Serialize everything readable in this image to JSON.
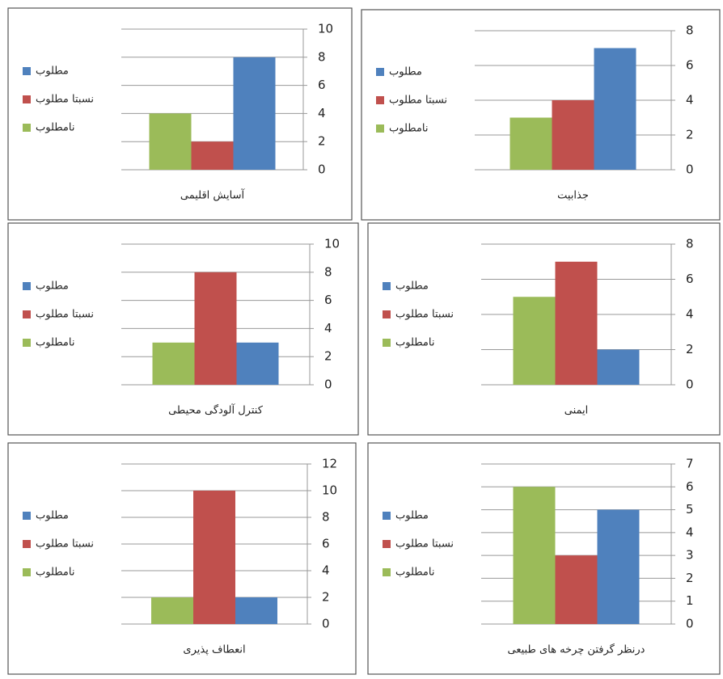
{
  "chart_data": [
    {
      "type": "bar",
      "categories": [
        "آسایش اقلیمی"
      ],
      "series": [
        {
          "name": "مطلوب",
          "color": "#4f81bd",
          "values": [
            8
          ]
        },
        {
          "name": "نسبتا مطلوب",
          "color": "#c0504d",
          "values": [
            2
          ]
        },
        {
          "name": "نامطلوب",
          "color": "#9bbb59",
          "values": [
            4
          ]
        }
      ],
      "ylim": [
        0,
        10
      ],
      "yticks": [
        0,
        2,
        4,
        6,
        8,
        10
      ],
      "grid": true,
      "legend": "left"
    },
    {
      "type": "bar",
      "categories": [
        "جذابیت"
      ],
      "series": [
        {
          "name": "مطلوب",
          "color": "#4f81bd",
          "values": [
            7
          ]
        },
        {
          "name": "نسبتا مطلوب",
          "color": "#c0504d",
          "values": [
            4
          ]
        },
        {
          "name": "نامطلوب",
          "color": "#9bbb59",
          "values": [
            3
          ]
        }
      ],
      "ylim": [
        0,
        8
      ],
      "yticks": [
        0,
        2,
        4,
        6,
        8
      ],
      "grid": true,
      "legend": "left"
    },
    {
      "type": "bar",
      "categories": [
        "کنترل آلودگی محیطی"
      ],
      "series": [
        {
          "name": "مطلوب",
          "color": "#4f81bd",
          "values": [
            3
          ]
        },
        {
          "name": "نسبتا مطلوب",
          "color": "#c0504d",
          "values": [
            8
          ]
        },
        {
          "name": "نامطلوب",
          "color": "#9bbb59",
          "values": [
            3
          ]
        }
      ],
      "ylim": [
        0,
        10
      ],
      "yticks": [
        0,
        2,
        4,
        6,
        8,
        10
      ],
      "grid": true,
      "legend": "left"
    },
    {
      "type": "bar",
      "categories": [
        "ایمنی"
      ],
      "series": [
        {
          "name": "مطلوب",
          "color": "#4f81bd",
          "values": [
            2
          ]
        },
        {
          "name": "نسبتا مطلوب",
          "color": "#c0504d",
          "values": [
            7
          ]
        },
        {
          "name": "نامطلوب",
          "color": "#9bbb59",
          "values": [
            5
          ]
        }
      ],
      "ylim": [
        0,
        8
      ],
      "yticks": [
        0,
        2,
        4,
        6,
        8
      ],
      "grid": true,
      "legend": "left"
    },
    {
      "type": "bar",
      "categories": [
        "انعطاف پذیری"
      ],
      "series": [
        {
          "name": "مطلوب",
          "color": "#4f81bd",
          "values": [
            2
          ]
        },
        {
          "name": "نسبتا مطلوب",
          "color": "#c0504d",
          "values": [
            10
          ]
        },
        {
          "name": "نامطلوب",
          "color": "#9bbb59",
          "values": [
            2
          ]
        }
      ],
      "ylim": [
        0,
        12
      ],
      "yticks": [
        0,
        2,
        4,
        6,
        8,
        10,
        12
      ],
      "grid": true,
      "legend": "left"
    },
    {
      "type": "bar",
      "categories": [
        "درنظر گرفتن چرخه های طبیعی"
      ],
      "series": [
        {
          "name": "مطلوب",
          "color": "#4f81bd",
          "values": [
            5
          ]
        },
        {
          "name": "نسبتا مطلوب",
          "color": "#c0504d",
          "values": [
            3
          ]
        },
        {
          "name": "نامطلوب",
          "color": "#9bbb59",
          "values": [
            6
          ]
        }
      ],
      "ylim": [
        0,
        7
      ],
      "yticks": [
        0,
        1,
        2,
        3,
        4,
        5,
        6,
        7
      ],
      "grid": true,
      "legend": "left"
    }
  ]
}
